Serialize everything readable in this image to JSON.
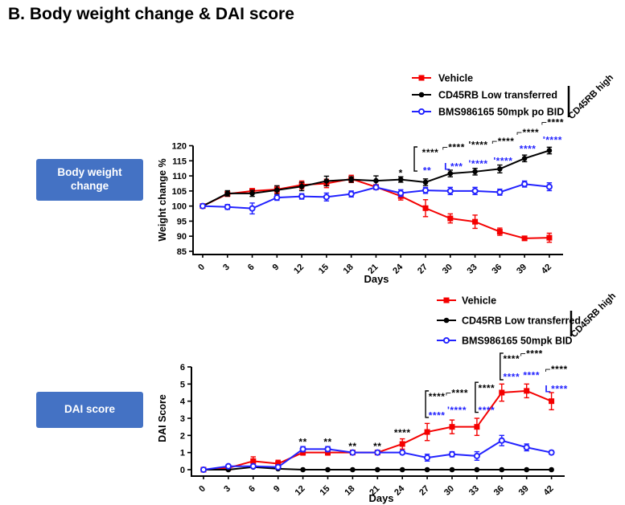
{
  "page": {
    "title": "B. Body weight change & DAI score"
  },
  "colors": {
    "vehicle": "#f40000",
    "transferred": "#000000",
    "bms": "#2222ff",
    "label_box": "#4472c4",
    "annotation_black": "#000000",
    "annotation_blue": "#2222ff"
  },
  "chart_data": [
    {
      "type": "line",
      "id": "weight",
      "side_label": "Body weight change",
      "xlabel": "Days",
      "ylabel": "Weight change %",
      "group_label": "CD45RB high",
      "ylim": [
        85,
        120
      ],
      "yticks": [
        85,
        90,
        95,
        100,
        105,
        110,
        115,
        120
      ],
      "x": [
        0,
        3,
        6,
        9,
        12,
        15,
        18,
        21,
        24,
        27,
        30,
        33,
        36,
        39,
        42
      ],
      "legend_position": "top-right",
      "grid": false,
      "series": [
        {
          "name": "Vehicle",
          "color_key": "vehicle",
          "marker": "square-filled",
          "values": [
            100,
            104,
            105,
            105.5,
            107,
            107.5,
            109,
            106.3,
            103.3,
            99.3,
            95.9,
            94.8,
            91.5,
            89.3,
            89.5
          ],
          "err": [
            0,
            0.8,
            0.8,
            1.2,
            1.3,
            1.4,
            1.2,
            0.8,
            1.3,
            2.8,
            1.5,
            2.2,
            1.2,
            0.7,
            1.5
          ]
        },
        {
          "name": "CD45RB Low transferred",
          "color_key": "transferred",
          "marker": "circle-filled",
          "values": [
            100,
            104.2,
            104.2,
            105.3,
            106.5,
            108.3,
            108.8,
            108.4,
            108.8,
            107.9,
            110.8,
            111.4,
            112.3,
            115.8,
            118.4
          ],
          "err": [
            0,
            0.9,
            1,
            1.4,
            1.4,
            1.6,
            0.9,
            1.6,
            0.9,
            1.1,
            1.1,
            1.1,
            1.3,
            1.1,
            1.1
          ]
        },
        {
          "name": "BMS986165 50mpk po BID",
          "color_key": "bms",
          "marker": "circle-open",
          "values": [
            100,
            99.7,
            99.2,
            102.8,
            103.2,
            103,
            104,
            106.2,
            104.3,
            105.2,
            105,
            105,
            104.6,
            107.3,
            106.4
          ],
          "err": [
            0,
            0.8,
            1.8,
            0.9,
            0.9,
            1.3,
            1,
            0.6,
            1.1,
            1,
            1.2,
            1.2,
            1,
            1,
            1.3
          ]
        }
      ],
      "annotations": [
        {
          "day": 24,
          "text": "*",
          "color": "black",
          "y": 111.8,
          "dx": 0
        },
        {
          "day": 27,
          "text": "****",
          "color": "black",
          "y": 118.6,
          "dx": 6
        },
        {
          "day": 27,
          "text": "**",
          "color": "blue",
          "y": 112.5,
          "dx": 2
        },
        {
          "day": 30,
          "text": "⌐****",
          "color": "black",
          "y": 120.3,
          "dx": 4
        },
        {
          "day": 30,
          "text": "L***",
          "color": "blue",
          "y": 113.9,
          "dx": 4
        },
        {
          "day": 33,
          "text": "'****",
          "color": "black",
          "y": 121.0,
          "dx": 4
        },
        {
          "day": 33,
          "text": "'****",
          "color": "blue",
          "y": 114.8,
          "dx": 4
        },
        {
          "day": 36,
          "text": "⌐****",
          "color": "black",
          "y": 122.3,
          "dx": 4
        },
        {
          "day": 36,
          "text": "'****",
          "color": "blue",
          "y": 115.7,
          "dx": 4
        },
        {
          "day": 39,
          "text": "⌐****",
          "color": "black",
          "y": 125.2,
          "dx": 4
        },
        {
          "day": 39,
          "text": "****",
          "color": "blue",
          "y": 119.7,
          "dx": 4
        },
        {
          "day": 42,
          "text": "⌐****",
          "color": "black",
          "y": 128.5,
          "dx": 4
        },
        {
          "day": 42,
          "text": "'****",
          "color": "blue",
          "y": 122.6,
          "dx": 4
        }
      ],
      "brackets": [
        {
          "day": 27,
          "y1": 119.6,
          "y2": 111.6,
          "dx": -14
        }
      ]
    },
    {
      "type": "line",
      "id": "dai",
      "side_label": "DAI score",
      "xlabel": "Days",
      "ylabel": "DAI Score",
      "group_label": "CD45RB high",
      "ylim": [
        0,
        6
      ],
      "yticks": [
        0,
        1,
        2,
        3,
        4,
        5,
        6
      ],
      "x": [
        0,
        3,
        6,
        9,
        12,
        15,
        18,
        21,
        24,
        27,
        30,
        33,
        36,
        39,
        42
      ],
      "legend_position": "top-right",
      "grid": false,
      "series": [
        {
          "name": "Vehicle",
          "color_key": "vehicle",
          "marker": "square-filled",
          "values": [
            0,
            0.1,
            0.5,
            0.35,
            1,
            1,
            1,
            1,
            1.5,
            2.2,
            2.5,
            2.5,
            4.5,
            4.6,
            4
          ],
          "err": [
            0,
            0.1,
            0.25,
            0.2,
            0.15,
            0.15,
            0.05,
            0.05,
            0.3,
            0.5,
            0.4,
            0.5,
            0.5,
            0.4,
            0.5
          ]
        },
        {
          "name": "CD45RB Low transferred",
          "color_key": "transferred",
          "marker": "circle-filled",
          "values": [
            0,
            0,
            0.15,
            0.05,
            0,
            0,
            0,
            0,
            0,
            0,
            0,
            0,
            0,
            0,
            0
          ],
          "err": [
            0,
            0,
            0,
            0,
            0,
            0,
            0,
            0,
            0,
            0,
            0,
            0,
            0,
            0,
            0
          ]
        },
        {
          "name": "BMS986165 50mpk BID",
          "color_key": "bms",
          "marker": "circle-open",
          "values": [
            0,
            0.2,
            0.2,
            0.15,
            1.2,
            1.2,
            1,
            1,
            1,
            0.7,
            0.9,
            0.8,
            1.7,
            1.3,
            1
          ],
          "err": [
            0,
            0.1,
            0.1,
            0.1,
            0.15,
            0.15,
            0.05,
            0.05,
            0.1,
            0.2,
            0.15,
            0.25,
            0.3,
            0.2,
            0.1
          ]
        }
      ],
      "annotations": [
        {
          "day": 12,
          "text": "**",
          "color": "black",
          "y": 1.75,
          "dx": 0
        },
        {
          "day": 15,
          "text": "**",
          "color": "black",
          "y": 1.75,
          "dx": 0
        },
        {
          "day": 18,
          "text": "**",
          "color": "black",
          "y": 1.5,
          "dx": 0
        },
        {
          "day": 21,
          "text": "**",
          "color": "black",
          "y": 1.5,
          "dx": 0
        },
        {
          "day": 24,
          "text": "****",
          "color": "black",
          "y": 2.3,
          "dx": 0
        },
        {
          "day": 27,
          "text": "****",
          "color": "black",
          "y": 4.4,
          "dx": 12
        },
        {
          "day": 27,
          "text": "****",
          "color": "blue",
          "y": 3.3,
          "dx": 12
        },
        {
          "day": 30,
          "text": "⌐****",
          "color": "black",
          "y": 4.62,
          "dx": 6
        },
        {
          "day": 30,
          "text": "'****",
          "color": "blue",
          "y": 3.62,
          "dx": 6
        },
        {
          "day": 33,
          "text": "****",
          "color": "black",
          "y": 4.9,
          "dx": 12
        },
        {
          "day": 33,
          "text": "****",
          "color": "blue",
          "y": 3.62,
          "dx": 12
        },
        {
          "day": 36,
          "text": "****",
          "color": "black",
          "y": 6.6,
          "dx": 12
        },
        {
          "day": 36,
          "text": "****",
          "color": "blue",
          "y": 5.55,
          "dx": 12
        },
        {
          "day": 39,
          "text": "⌐****",
          "color": "black",
          "y": 6.92,
          "dx": 6
        },
        {
          "day": 39,
          "text": "****",
          "color": "blue",
          "y": 5.65,
          "dx": 6
        },
        {
          "day": 42,
          "text": "⌐****",
          "color": "black",
          "y": 6.0,
          "dx": 6
        },
        {
          "day": 42,
          "text": "L****",
          "color": "blue",
          "y": 4.85,
          "dx": 6
        }
      ],
      "brackets": [
        {
          "day": 27,
          "y1": 4.6,
          "y2": 3.05,
          "dx": -2
        },
        {
          "day": 33,
          "y1": 5.1,
          "y2": 3.35,
          "dx": -2
        },
        {
          "day": 36,
          "y1": 6.8,
          "y2": 5.25,
          "dx": -2
        }
      ]
    }
  ]
}
